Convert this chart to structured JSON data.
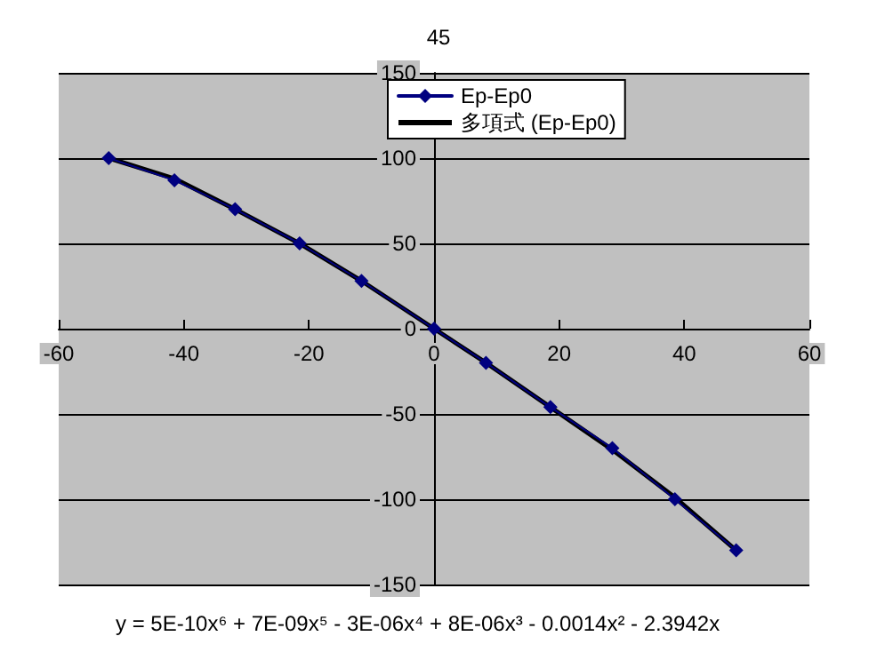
{
  "chart_data": {
    "type": "line",
    "title": "45",
    "annotations": [
      "y = 5E-10x⁶ + 7E-09x⁵ - 3E-06x⁴ + 8E-06x³ - 0.0014x² - 2.3942x"
    ],
    "xlim": [
      -60,
      60
    ],
    "xticks": [
      -60,
      -40,
      -20,
      0,
      20,
      40,
      60
    ],
    "ylim": [
      -150,
      150
    ],
    "yticks": [
      -150,
      -100,
      -50,
      0,
      50,
      100,
      150
    ],
    "grid": "y",
    "legend": "top",
    "series": [
      {
        "name": "多項式 (Ep-Ep0)",
        "color": "#000000",
        "marker": "none",
        "x": [
          -52,
          -41.5,
          -31.8,
          -21.5,
          -11.6,
          0,
          8.3,
          18.6,
          28.5,
          38.5,
          48.3
        ],
        "values": [
          100,
          88,
          70,
          50,
          28,
          0,
          -20,
          -46,
          -71,
          -99,
          -130
        ]
      },
      {
        "name": "Ep-Ep0",
        "color": "#000080",
        "marker": "diamond",
        "x": [
          -52,
          -41.5,
          -31.8,
          -21.5,
          -11.6,
          0,
          8.3,
          18.6,
          28.5,
          38.5,
          48.3
        ],
        "values": [
          100,
          87,
          70,
          50,
          28,
          0,
          -20,
          -46,
          -70,
          -100,
          -130
        ]
      }
    ]
  }
}
